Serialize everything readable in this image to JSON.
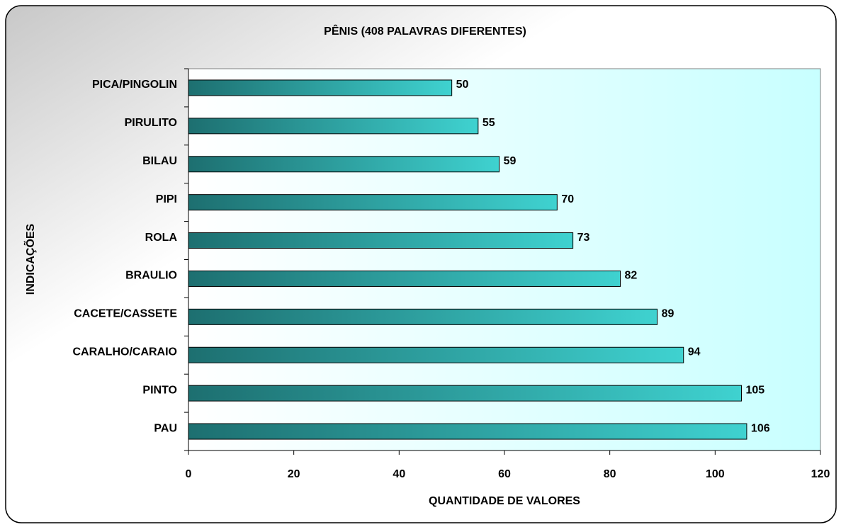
{
  "chart_data": {
    "type": "bar",
    "orientation": "horizontal",
    "title": "PÊNIS  (408 PALAVRAS DIFERENTES)",
    "xlabel": "QUANTIDADE DE VALORES",
    "ylabel": "INDICAÇÕES",
    "categories": [
      "PICA/PINGOLIN",
      "PIRULITO",
      "BILAU",
      "PIPI",
      "ROLA",
      "BRAULIO",
      "CACETE/CASSETE",
      "CARALHO/CARAIO",
      "PINTO",
      "PAU"
    ],
    "values": [
      50,
      55,
      59,
      70,
      73,
      82,
      89,
      94,
      105,
      106
    ],
    "color": "#2aa8a8",
    "xlim": [
      0,
      120
    ],
    "xticks": [
      0,
      20,
      40,
      60,
      80,
      100,
      120
    ],
    "grid": false
  }
}
